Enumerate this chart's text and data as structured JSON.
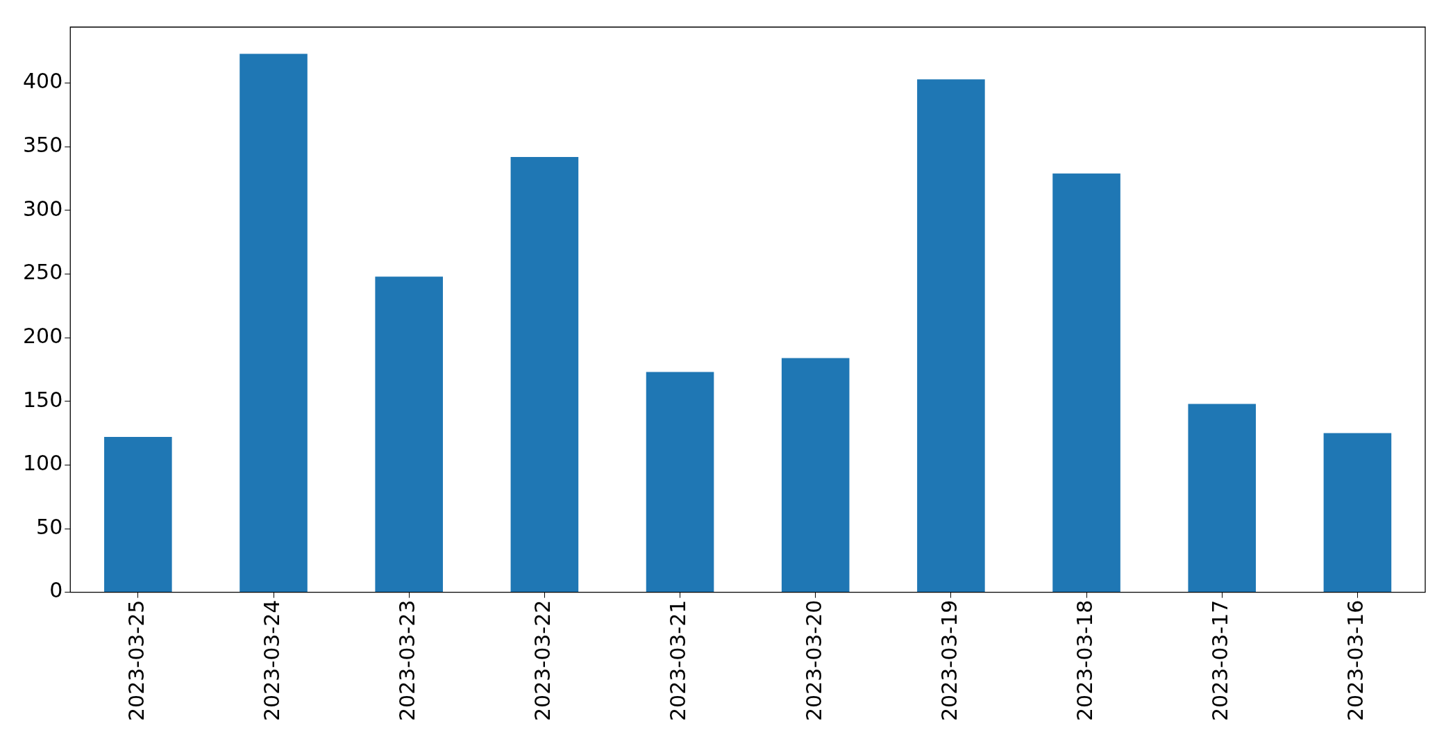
{
  "chart_data": {
    "type": "bar",
    "categories": [
      "2023-03-25",
      "2023-03-24",
      "2023-03-23",
      "2023-03-22",
      "2023-03-21",
      "2023-03-20",
      "2023-03-19",
      "2023-03-18",
      "2023-03-17",
      "2023-03-16"
    ],
    "values": [
      122,
      423,
      248,
      342,
      173,
      184,
      403,
      329,
      148,
      125
    ],
    "color": "#1f77b4",
    "ylim": [
      0,
      444
    ],
    "yticks": [
      0,
      50,
      100,
      150,
      200,
      250,
      300,
      350,
      400
    ],
    "grid": false,
    "legend": false
  }
}
